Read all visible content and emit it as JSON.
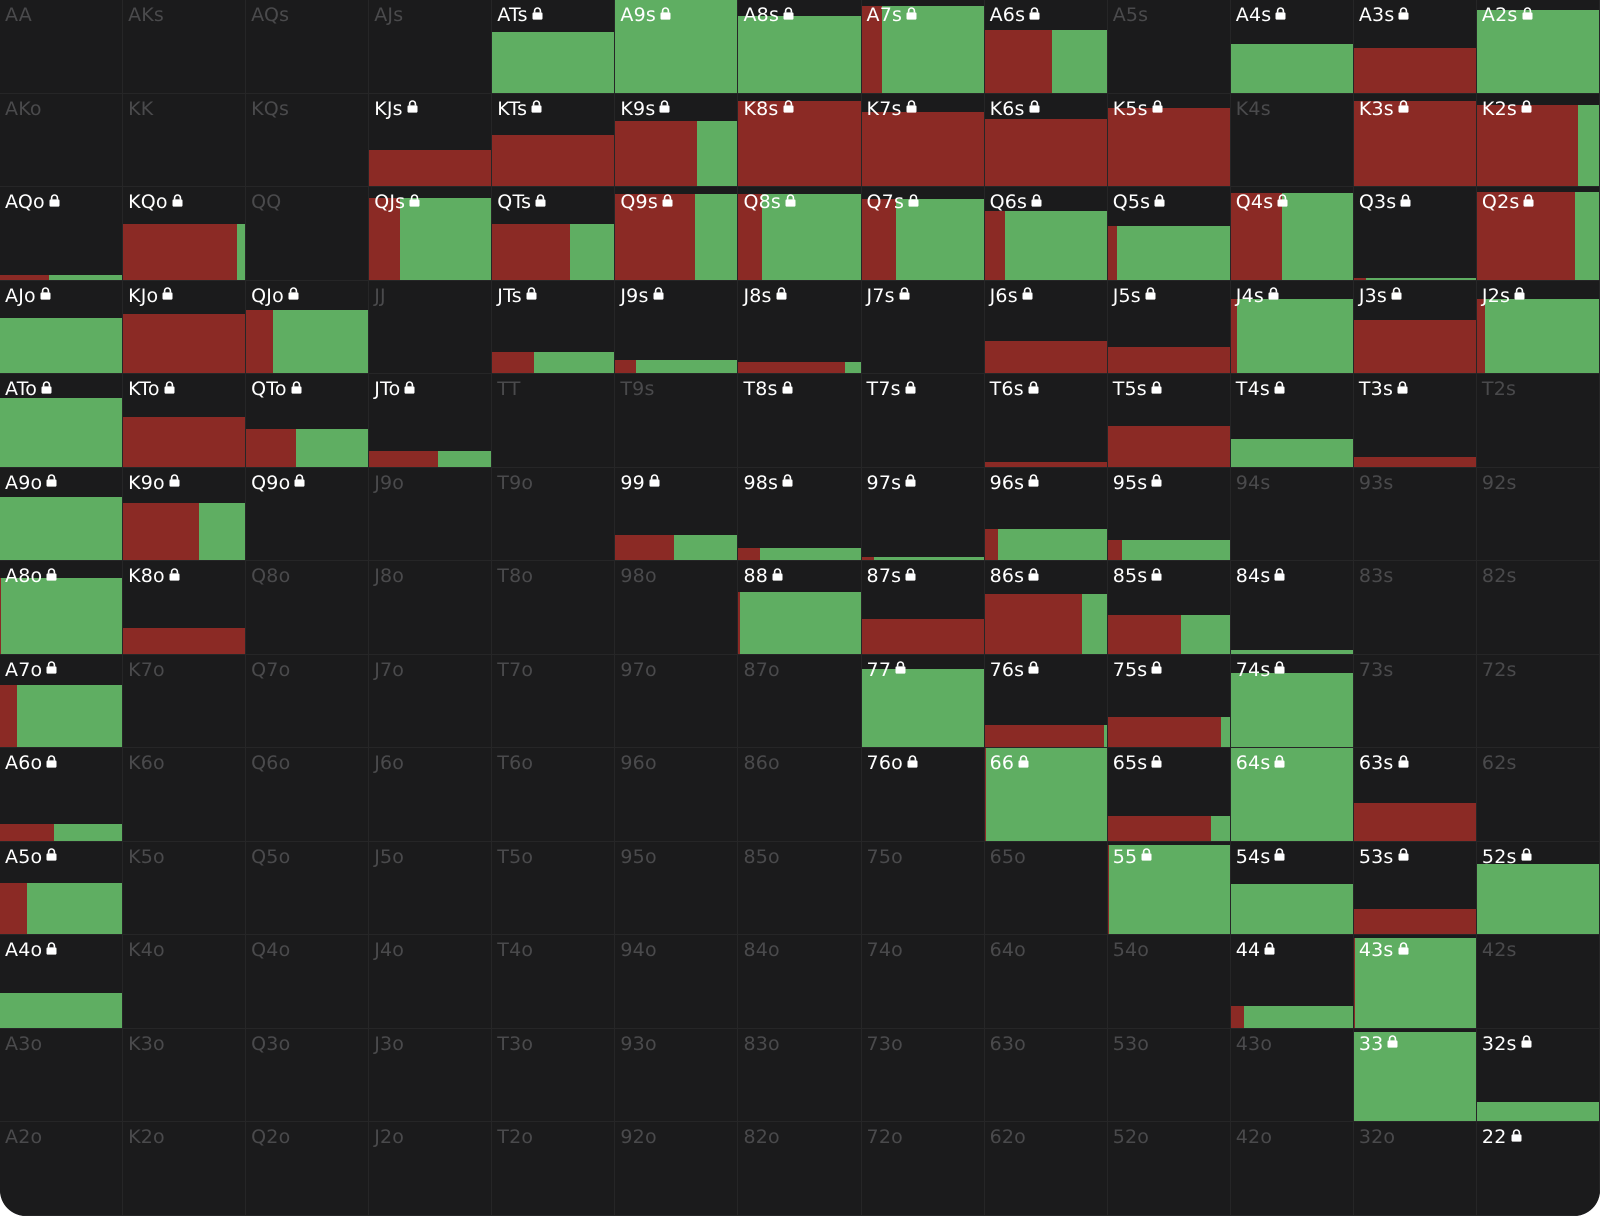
{
  "colors": {
    "background": "#1b1b1c",
    "red": "#8b2a25",
    "green": "#5fae62",
    "inactive_text": "#4a4a4c",
    "active_text": "#ffffff"
  },
  "icons": {
    "locked": "lock-icon"
  },
  "hands": [
    [
      {
        "label": "AA",
        "active": false
      },
      {
        "label": "AKs",
        "active": false
      },
      {
        "label": "AQs",
        "active": false
      },
      {
        "label": "AJs",
        "active": false
      },
      {
        "label": "ATs",
        "active": true,
        "locked": true,
        "fill": 0.65,
        "red": 0
      },
      {
        "label": "A9s",
        "active": true,
        "locked": true,
        "fill": 1.0,
        "red": 0
      },
      {
        "label": "A8s",
        "active": true,
        "locked": true,
        "fill": 0.83,
        "red": 0
      },
      {
        "label": "A7s",
        "active": true,
        "locked": true,
        "fill": 0.94,
        "red": 0.17
      },
      {
        "label": "A6s",
        "active": true,
        "locked": true,
        "fill": 0.68,
        "red": 0.55
      },
      {
        "label": "A5s",
        "active": false
      },
      {
        "label": "A4s",
        "active": true,
        "locked": true,
        "fill": 0.53,
        "red": 0
      },
      {
        "label": "A3s",
        "active": true,
        "locked": true,
        "fill": 0.48,
        "red": 1.0
      },
      {
        "label": "A2s",
        "active": true,
        "locked": true,
        "fill": 0.89,
        "red": 0
      }
    ],
    [
      {
        "label": "AKo",
        "active": false
      },
      {
        "label": "KK",
        "active": false
      },
      {
        "label": "KQs",
        "active": false
      },
      {
        "label": "KJs",
        "active": true,
        "locked": true,
        "fill": 0.39,
        "red": 1.0
      },
      {
        "label": "KTs",
        "active": true,
        "locked": true,
        "fill": 0.55,
        "red": 1.0
      },
      {
        "label": "K9s",
        "active": true,
        "locked": true,
        "fill": 0.7,
        "red": 0.67
      },
      {
        "label": "K8s",
        "active": true,
        "locked": true,
        "fill": 0.92,
        "red": 1.0
      },
      {
        "label": "K7s",
        "active": true,
        "locked": true,
        "fill": 0.8,
        "red": 1.0
      },
      {
        "label": "K6s",
        "active": true,
        "locked": true,
        "fill": 0.73,
        "red": 1.0
      },
      {
        "label": "K5s",
        "active": true,
        "locked": true,
        "fill": 0.84,
        "red": 1.0
      },
      {
        "label": "K4s",
        "active": false
      },
      {
        "label": "K3s",
        "active": true,
        "locked": true,
        "fill": 0.92,
        "red": 1.0
      },
      {
        "label": "K2s",
        "active": true,
        "locked": true,
        "fill": 0.88,
        "red": 0.83
      }
    ],
    [
      {
        "label": "AQo",
        "active": true,
        "locked": true,
        "fill": 0.05,
        "red": 0.4
      },
      {
        "label": "KQo",
        "active": true,
        "locked": true,
        "fill": 0.6,
        "red": 0.93
      },
      {
        "label": "QQ",
        "active": false
      },
      {
        "label": "QJs",
        "active": true,
        "locked": true,
        "fill": 0.88,
        "red": 0.25
      },
      {
        "label": "QTs",
        "active": true,
        "locked": true,
        "fill": 0.6,
        "red": 0.64
      },
      {
        "label": "Q9s",
        "active": true,
        "locked": true,
        "fill": 0.93,
        "red": 0.65
      },
      {
        "label": "Q8s",
        "active": true,
        "locked": true,
        "fill": 0.93,
        "red": 0.19
      },
      {
        "label": "Q7s",
        "active": true,
        "locked": true,
        "fill": 0.87,
        "red": 0.28
      },
      {
        "label": "Q6s",
        "active": true,
        "locked": true,
        "fill": 0.74,
        "red": 0.17
      },
      {
        "label": "Q5s",
        "active": true,
        "locked": true,
        "fill": 0.58,
        "red": 0.08
      },
      {
        "label": "Q4s",
        "active": true,
        "locked": true,
        "fill": 0.94,
        "red": 0.42
      },
      {
        "label": "Q3s",
        "active": true,
        "locked": true,
        "fill": 0.02,
        "red": 0.1
      },
      {
        "label": "Q2s",
        "active": true,
        "locked": true,
        "fill": 0.95,
        "red": 0.8
      }
    ],
    [
      {
        "label": "AJo",
        "active": true,
        "locked": true,
        "fill": 0.6,
        "red": 0
      },
      {
        "label": "KJo",
        "active": true,
        "locked": true,
        "fill": 0.64,
        "red": 1.0
      },
      {
        "label": "QJo",
        "active": true,
        "locked": true,
        "fill": 0.68,
        "red": 0.22
      },
      {
        "label": "JJ",
        "active": false
      },
      {
        "label": "JTs",
        "active": true,
        "locked": true,
        "fill": 0.23,
        "red": 0.34
      },
      {
        "label": "J9s",
        "active": true,
        "locked": true,
        "fill": 0.14,
        "red": 0.17
      },
      {
        "label": "J8s",
        "active": true,
        "locked": true,
        "fill": 0.12,
        "red": 0.87
      },
      {
        "label": "J7s",
        "active": false,
        "locked": true
      },
      {
        "label": "J6s",
        "active": true,
        "locked": true,
        "fill": 0.35,
        "red": 1.0
      },
      {
        "label": "J5s",
        "active": true,
        "locked": true,
        "fill": 0.28,
        "red": 1.0
      },
      {
        "label": "J4s",
        "active": true,
        "locked": true,
        "fill": 0.8,
        "red": 0.05
      },
      {
        "label": "J3s",
        "active": true,
        "locked": true,
        "fill": 0.57,
        "red": 1.0
      },
      {
        "label": "J2s",
        "active": true,
        "locked": true,
        "fill": 0.8,
        "red": 0.07
      }
    ],
    [
      {
        "label": "ATo",
        "active": true,
        "locked": true,
        "fill": 0.74,
        "red": 0
      },
      {
        "label": "KTo",
        "active": true,
        "locked": true,
        "fill": 0.54,
        "red": 1.0
      },
      {
        "label": "QTo",
        "active": true,
        "locked": true,
        "fill": 0.41,
        "red": 0.41
      },
      {
        "label": "JTo",
        "active": true,
        "locked": true,
        "fill": 0.17,
        "red": 0.56
      },
      {
        "label": "TT",
        "active": false
      },
      {
        "label": "T9s",
        "active": false
      },
      {
        "label": "T8s",
        "active": false,
        "locked": true
      },
      {
        "label": "T7s",
        "active": false,
        "locked": true
      },
      {
        "label": "T6s",
        "active": true,
        "locked": true,
        "fill": 0.05,
        "red": 1.0
      },
      {
        "label": "T5s",
        "active": true,
        "locked": true,
        "fill": 0.44,
        "red": 1.0
      },
      {
        "label": "T4s",
        "active": true,
        "locked": true,
        "fill": 0.3,
        "red": 0
      },
      {
        "label": "T3s",
        "active": true,
        "locked": true,
        "fill": 0.1,
        "red": 1.0
      },
      {
        "label": "T2s",
        "active": false
      }
    ],
    [
      {
        "label": "A9o",
        "active": true,
        "locked": true,
        "fill": 0.68,
        "red": 0
      },
      {
        "label": "K9o",
        "active": true,
        "locked": true,
        "fill": 0.62,
        "red": 0.62
      },
      {
        "label": "Q9o",
        "active": false,
        "locked": true
      },
      {
        "label": "J9o",
        "active": false
      },
      {
        "label": "T9o",
        "active": false
      },
      {
        "label": "99",
        "active": true,
        "locked": true,
        "fill": 0.27,
        "red": 0.48
      },
      {
        "label": "98s",
        "active": true,
        "locked": true,
        "fill": 0.13,
        "red": 0.18
      },
      {
        "label": "97s",
        "active": true,
        "locked": true,
        "fill": 0.03,
        "red": 0.1
      },
      {
        "label": "96s",
        "active": true,
        "locked": true,
        "fill": 0.34,
        "red": 0.11
      },
      {
        "label": "95s",
        "active": true,
        "locked": true,
        "fill": 0.22,
        "red": 0.12
      },
      {
        "label": "94s",
        "active": false
      },
      {
        "label": "93s",
        "active": false
      },
      {
        "label": "92s",
        "active": false
      }
    ],
    [
      {
        "label": "A8o",
        "active": true,
        "locked": true,
        "fill": 0.82,
        "red": 0.01
      },
      {
        "label": "K8o",
        "active": true,
        "locked": true,
        "fill": 0.28,
        "red": 1.0
      },
      {
        "label": "Q8o",
        "active": false
      },
      {
        "label": "J8o",
        "active": false
      },
      {
        "label": "T8o",
        "active": false
      },
      {
        "label": "98o",
        "active": false
      },
      {
        "label": "88",
        "active": true,
        "locked": true,
        "fill": 0.67,
        "red": 0.01
      },
      {
        "label": "87s",
        "active": true,
        "locked": true,
        "fill": 0.38,
        "red": 1.0
      },
      {
        "label": "86s",
        "active": true,
        "locked": true,
        "fill": 0.65,
        "red": 0.8
      },
      {
        "label": "85s",
        "active": true,
        "locked": true,
        "fill": 0.42,
        "red": 0.6
      },
      {
        "label": "84s",
        "active": true,
        "locked": true,
        "fill": 0.04,
        "red": 0
      },
      {
        "label": "83s",
        "active": false
      },
      {
        "label": "82s",
        "active": false
      }
    ],
    [
      {
        "label": "A7o",
        "active": true,
        "locked": true,
        "fill": 0.67,
        "red": 0.14
      },
      {
        "label": "K7o",
        "active": false
      },
      {
        "label": "Q7o",
        "active": false
      },
      {
        "label": "J7o",
        "active": false
      },
      {
        "label": "T7o",
        "active": false
      },
      {
        "label": "97o",
        "active": false
      },
      {
        "label": "87o",
        "active": false
      },
      {
        "label": "77",
        "active": true,
        "locked": true,
        "fill": 0.85,
        "red": 0
      },
      {
        "label": "76s",
        "active": true,
        "locked": true,
        "fill": 0.24,
        "red": 0.98
      },
      {
        "label": "75s",
        "active": true,
        "locked": true,
        "fill": 0.33,
        "red": 0.93
      },
      {
        "label": "74s",
        "active": true,
        "locked": true,
        "fill": 0.8,
        "red": 0
      },
      {
        "label": "73s",
        "active": false
      },
      {
        "label": "72s",
        "active": false
      }
    ],
    [
      {
        "label": "A6o",
        "active": true,
        "locked": true,
        "fill": 0.18,
        "red": 0.44
      },
      {
        "label": "K6o",
        "active": false
      },
      {
        "label": "Q6o",
        "active": false
      },
      {
        "label": "J6o",
        "active": false
      },
      {
        "label": "T6o",
        "active": false
      },
      {
        "label": "96o",
        "active": false
      },
      {
        "label": "86o",
        "active": false
      },
      {
        "label": "76o",
        "active": false,
        "locked": true
      },
      {
        "label": "66",
        "active": true,
        "locked": true,
        "fill": 1.0,
        "red": 0.01
      },
      {
        "label": "65s",
        "active": true,
        "locked": true,
        "fill": 0.27,
        "red": 0.85
      },
      {
        "label": "64s",
        "active": true,
        "locked": true,
        "fill": 1.0,
        "red": 0
      },
      {
        "label": "63s",
        "active": true,
        "locked": true,
        "fill": 0.41,
        "red": 1.0
      },
      {
        "label": "62s",
        "active": false
      }
    ],
    [
      {
        "label": "A5o",
        "active": true,
        "locked": true,
        "fill": 0.55,
        "red": 0.22
      },
      {
        "label": "K5o",
        "active": false
      },
      {
        "label": "Q5o",
        "active": false
      },
      {
        "label": "J5o",
        "active": false
      },
      {
        "label": "T5o",
        "active": false
      },
      {
        "label": "95o",
        "active": false
      },
      {
        "label": "85o",
        "active": false
      },
      {
        "label": "75o",
        "active": false
      },
      {
        "label": "65o",
        "active": false
      },
      {
        "label": "55",
        "active": true,
        "locked": true,
        "fill": 0.97,
        "red": 0.01
      },
      {
        "label": "54s",
        "active": true,
        "locked": true,
        "fill": 0.54,
        "red": 0
      },
      {
        "label": "53s",
        "active": true,
        "locked": true,
        "fill": 0.27,
        "red": 1.0
      },
      {
        "label": "52s",
        "active": true,
        "locked": true,
        "fill": 0.76,
        "red": 0
      }
    ],
    [
      {
        "label": "A4o",
        "active": true,
        "locked": true,
        "fill": 0.38,
        "red": 0
      },
      {
        "label": "K4o",
        "active": false
      },
      {
        "label": "Q4o",
        "active": false
      },
      {
        "label": "J4o",
        "active": false
      },
      {
        "label": "T4o",
        "active": false
      },
      {
        "label": "94o",
        "active": false
      },
      {
        "label": "84o",
        "active": false
      },
      {
        "label": "74o",
        "active": false
      },
      {
        "label": "64o",
        "active": false
      },
      {
        "label": "54o",
        "active": false
      },
      {
        "label": "44",
        "active": true,
        "locked": true,
        "fill": 0.24,
        "red": 0.11
      },
      {
        "label": "43s",
        "active": true,
        "locked": true,
        "fill": 0.97,
        "red": 0.01
      },
      {
        "label": "42s",
        "active": false
      }
    ],
    [
      {
        "label": "A3o",
        "active": false
      },
      {
        "label": "K3o",
        "active": false
      },
      {
        "label": "Q3o",
        "active": false
      },
      {
        "label": "J3o",
        "active": false
      },
      {
        "label": "T3o",
        "active": false
      },
      {
        "label": "93o",
        "active": false
      },
      {
        "label": "83o",
        "active": false
      },
      {
        "label": "73o",
        "active": false
      },
      {
        "label": "63o",
        "active": false
      },
      {
        "label": "53o",
        "active": false
      },
      {
        "label": "43o",
        "active": false
      },
      {
        "label": "33",
        "active": true,
        "locked": true,
        "fill": 0.97,
        "red": 0
      },
      {
        "label": "32s",
        "active": true,
        "locked": true,
        "fill": 0.21,
        "red": 0
      }
    ],
    [
      {
        "label": "A2o",
        "active": false
      },
      {
        "label": "K2o",
        "active": false
      },
      {
        "label": "Q2o",
        "active": false
      },
      {
        "label": "J2o",
        "active": false
      },
      {
        "label": "T2o",
        "active": false
      },
      {
        "label": "92o",
        "active": false
      },
      {
        "label": "82o",
        "active": false
      },
      {
        "label": "72o",
        "active": false
      },
      {
        "label": "62o",
        "active": false
      },
      {
        "label": "52o",
        "active": false
      },
      {
        "label": "42o",
        "active": false
      },
      {
        "label": "32o",
        "active": false
      },
      {
        "label": "22",
        "active": false,
        "locked": true
      }
    ]
  ]
}
